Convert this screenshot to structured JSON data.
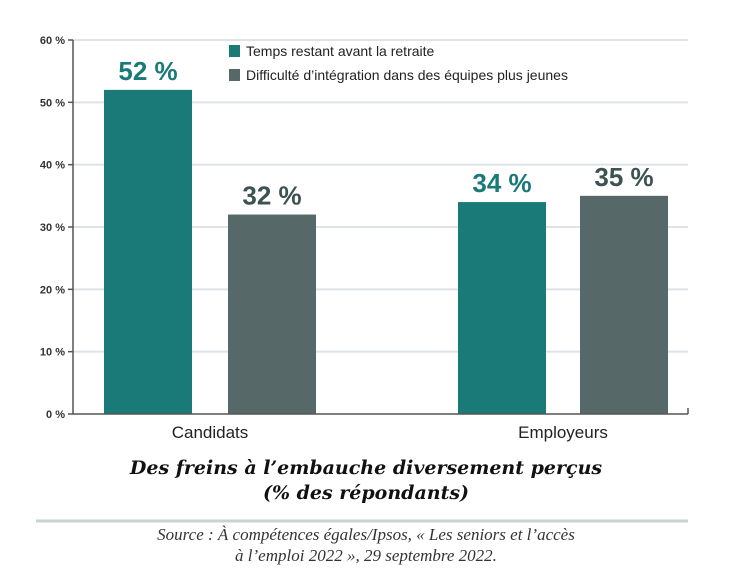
{
  "chart_data": {
    "type": "bar",
    "categories": [
      "Candidats",
      "Employeurs"
    ],
    "series": [
      {
        "name": "Temps restant avant la retraite",
        "values": [
          52,
          34
        ],
        "color": "#1a7a78",
        "label_color": "#1a7a78"
      },
      {
        "name": "Difficulté d’intégration dans des équipes plus jeunes",
        "values": [
          32,
          35
        ],
        "color": "#566868",
        "label_color": "#3d5253"
      }
    ],
    "data_labels": [
      [
        "52 %",
        "34 %"
      ],
      [
        "32 %",
        "35 %"
      ]
    ],
    "yticks": [
      0,
      10,
      20,
      30,
      40,
      50,
      60
    ],
    "ytick_labels": [
      "0 %",
      "10 %",
      "20 %",
      "30 %",
      "40 %",
      "50 %",
      "60 %"
    ],
    "ylim": [
      0,
      60
    ],
    "grid": true,
    "legend_position": "top-right",
    "title": "Des freins à l’embauche diversement perçus",
    "subtitle": "(% des répondants)",
    "source_line1": "Source : À compétences égales/Ipsos, « Les seniors et l’accès",
    "source_line2": "à l’emploi 2022 », 29 septembre 2022.",
    "xlabel": "",
    "ylabel": ""
  }
}
